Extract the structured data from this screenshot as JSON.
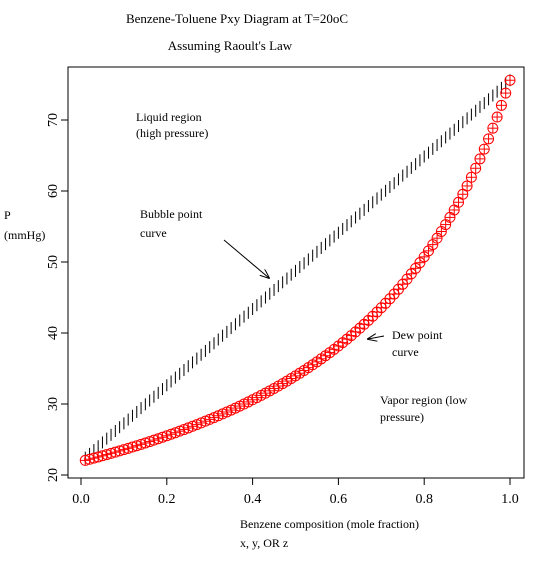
{
  "chart_data": {
    "type": "scatter",
    "title": "Benzene-Toluene Pxy Diagram at T=20oC",
    "subtitle": "Assuming Raoult's Law",
    "xlabel_line1": "Benzene composition (mole fraction)",
    "xlabel_line2": "x, y, OR z",
    "ylabel_line1": "P",
    "ylabel_line2": "(mmHg)",
    "xlim": [
      0,
      1
    ],
    "ylim": [
      20,
      76
    ],
    "xticks": [
      0.0,
      0.2,
      0.4,
      0.6,
      0.8,
      1.0
    ],
    "xtick_labels": [
      "0.0",
      "0.2",
      "0.4",
      "0.6",
      "0.8",
      "1.0"
    ],
    "yticks": [
      20,
      30,
      40,
      50,
      60,
      70
    ],
    "ytick_labels": [
      "20",
      "30",
      "40",
      "50",
      "60",
      "70"
    ],
    "grid": false,
    "components": {
      "benzene_vapor_pressure_mmHg": 75.6,
      "toluene_vapor_pressure_mmHg": 21.9
    },
    "series": [
      {
        "kind": "bubble-point",
        "marker": "vertical-tick",
        "color": "#000000",
        "x_start": 0.01,
        "x_end": 1.0,
        "n_points": 100
      },
      {
        "kind": "dew-point",
        "marker": "circle-and-cross",
        "color": "#ff0000",
        "x_start": 0.01,
        "x_end": 1.0,
        "n_points": 100
      }
    ],
    "annotations": {
      "liquid_region": [
        "Liquid region",
        "(high pressure)"
      ],
      "bubble_point": [
        "Bubble point",
        "curve"
      ],
      "dew_point": [
        "Dew point",
        "curve"
      ],
      "vapor_region": [
        "Vapor region (low",
        "pressure)"
      ]
    }
  }
}
